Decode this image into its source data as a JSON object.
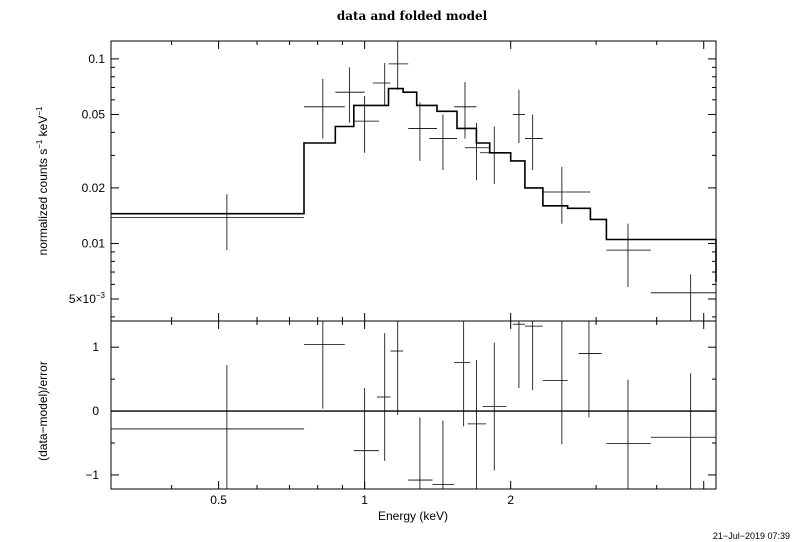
{
  "chart_data": [
    {
      "type": "scatter",
      "title": "data and folded model",
      "xlabel": "Energy (keV)",
      "ylabel_main": "normalized counts s",
      "ylabel_sup1": "−1",
      "ylabel_mid": " keV",
      "ylabel_sup2": "−1",
      "xscale": "log",
      "yscale": "log",
      "xlim": [
        0.3,
        5.3
      ],
      "ylim": [
        0.0038,
        0.125
      ],
      "ytick_labels": [
        {
          "value": 0.1,
          "label": "0.1"
        },
        {
          "value": 0.05,
          "label": "0.05"
        },
        {
          "value": 0.02,
          "label": "0.02"
        },
        {
          "value": 0.01,
          "label": "0.01"
        },
        {
          "value": 0.005,
          "label": "5×10",
          "sup": "−3"
        }
      ],
      "series": [
        {
          "points": [
            {
              "x": 0.52,
              "xlo": 0.3,
              "xhi": 0.75,
              "y": 0.0138,
              "ylo": 0.0092,
              "yhi": 0.0185
            },
            {
              "x": 0.82,
              "xlo": 0.75,
              "xhi": 0.91,
              "y": 0.055,
              "ylo": 0.037,
              "yhi": 0.078
            },
            {
              "x": 0.93,
              "xlo": 0.87,
              "xhi": 1.0,
              "y": 0.066,
              "ylo": 0.045,
              "yhi": 0.09
            },
            {
              "x": 1.0,
              "xlo": 0.95,
              "xhi": 1.07,
              "y": 0.046,
              "ylo": 0.031,
              "yhi": 0.063
            },
            {
              "x": 1.1,
              "xlo": 1.04,
              "xhi": 1.13,
              "y": 0.074,
              "ylo": 0.056,
              "yhi": 0.095
            },
            {
              "x": 1.17,
              "xlo": 1.12,
              "xhi": 1.23,
              "y": 0.094,
              "ylo": 0.068,
              "yhi": 0.125
            },
            {
              "x": 1.3,
              "xlo": 1.23,
              "xhi": 1.41,
              "y": 0.042,
              "ylo": 0.028,
              "yhi": 0.058
            },
            {
              "x": 1.45,
              "xlo": 1.36,
              "xhi": 1.55,
              "y": 0.037,
              "ylo": 0.025,
              "yhi": 0.05
            },
            {
              "x": 1.61,
              "xlo": 1.53,
              "xhi": 1.7,
              "y": 0.055,
              "ylo": 0.037,
              "yhi": 0.075
            },
            {
              "x": 1.7,
              "xlo": 1.61,
              "xhi": 1.81,
              "y": 0.033,
              "ylo": 0.022,
              "yhi": 0.045
            },
            {
              "x": 1.85,
              "xlo": 1.73,
              "xhi": 1.99,
              "y": 0.031,
              "ylo": 0.021,
              "yhi": 0.043
            },
            {
              "x": 2.08,
              "xlo": 2.02,
              "xhi": 2.14,
              "y": 0.05,
              "ylo": 0.035,
              "yhi": 0.068
            },
            {
              "x": 2.22,
              "xlo": 2.14,
              "xhi": 2.33,
              "y": 0.037,
              "ylo": 0.025,
              "yhi": 0.05
            },
            {
              "x": 2.55,
              "xlo": 2.33,
              "xhi": 2.92,
              "y": 0.019,
              "ylo": 0.0128,
              "yhi": 0.026
            },
            {
              "x": 3.49,
              "xlo": 3.15,
              "xhi": 3.89,
              "y": 0.0092,
              "ylo": 0.0058,
              "yhi": 0.0128
            },
            {
              "x": 4.7,
              "xlo": 3.89,
              "xhi": 5.3,
              "y": 0.0054,
              "ylo": 0.0038,
              "yhi": 0.0068
            }
          ]
        },
        {
          "type": "step",
          "edges": [
            0.3,
            0.75,
            0.87,
            0.95,
            1.07,
            1.12,
            1.2,
            1.28,
            1.41,
            1.55,
            1.7,
            1.81,
            2.0,
            2.14,
            2.33,
            2.62,
            2.92,
            3.15,
            3.89,
            5.3
          ],
          "values": [
            0.0145,
            0.035,
            0.043,
            0.056,
            0.056,
            0.069,
            0.066,
            0.056,
            0.052,
            0.042,
            0.035,
            0.031,
            0.028,
            0.02,
            0.016,
            0.0155,
            0.0135,
            0.0105,
            0.0105,
            0.0062
          ]
        }
      ]
    },
    {
      "type": "scatter",
      "xlabel": "Energy (keV)",
      "ylabel": "(data−model)/error",
      "xscale": "log",
      "xlim": [
        0.3,
        5.3
      ],
      "ylim": [
        -1.22,
        1.41
      ],
      "xtick_labels": [
        {
          "value": 0.5,
          "label": "0.5"
        },
        {
          "value": 1,
          "label": "1"
        },
        {
          "value": 2,
          "label": "2"
        }
      ],
      "ytick_labels": [
        {
          "value": 1,
          "label": "1"
        },
        {
          "value": 0,
          "label": "0"
        },
        {
          "value": -1,
          "label": "−1"
        }
      ],
      "zero_line": 0,
      "series": [
        {
          "points": [
            {
              "x": 0.52,
              "xlo": 0.3,
              "xhi": 0.75,
              "y": -0.28,
              "ylo": -1.22,
              "yhi": 0.72
            },
            {
              "x": 0.82,
              "xlo": 0.75,
              "xhi": 0.91,
              "y": 1.04,
              "ylo": 0.04,
              "yhi": 1.41
            },
            {
              "x": 1.0,
              "xlo": 0.95,
              "xhi": 1.07,
              "y": -0.62,
              "ylo": -1.22,
              "yhi": 0.36
            },
            {
              "x": 1.1,
              "xlo": 1.06,
              "xhi": 1.13,
              "y": 0.22,
              "ylo": -0.78,
              "yhi": 1.22
            },
            {
              "x": 1.17,
              "xlo": 1.13,
              "xhi": 1.2,
              "y": 0.94,
              "ylo": -0.06,
              "yhi": 1.41
            },
            {
              "x": 1.3,
              "xlo": 1.23,
              "xhi": 1.38,
              "y": -1.08,
              "ylo": -1.22,
              "yhi": -0.1
            },
            {
              "x": 1.45,
              "xlo": 1.38,
              "xhi": 1.53,
              "y": -1.15,
              "ylo": -1.22,
              "yhi": -0.15
            },
            {
              "x": 1.6,
              "xlo": 1.53,
              "xhi": 1.65,
              "y": 0.76,
              "ylo": -0.24,
              "yhi": 1.41
            },
            {
              "x": 1.7,
              "xlo": 1.63,
              "xhi": 1.78,
              "y": -0.2,
              "ylo": -1.22,
              "yhi": 0.8
            },
            {
              "x": 1.85,
              "xlo": 1.75,
              "xhi": 1.96,
              "y": 0.07,
              "ylo": -0.93,
              "yhi": 1.07
            },
            {
              "x": 2.08,
              "xlo": 2.02,
              "xhi": 2.14,
              "y": 1.36,
              "ylo": 0.36,
              "yhi": 1.41
            },
            {
              "x": 2.22,
              "xlo": 2.14,
              "xhi": 2.33,
              "y": 1.33,
              "ylo": 0.33,
              "yhi": 1.41
            },
            {
              "x": 2.55,
              "xlo": 2.33,
              "xhi": 2.62,
              "y": 0.48,
              "ylo": -0.52,
              "yhi": 1.41
            },
            {
              "x": 2.9,
              "xlo": 2.76,
              "xhi": 3.08,
              "y": 0.9,
              "ylo": -0.1,
              "yhi": 1.41
            },
            {
              "x": 3.49,
              "xlo": 3.15,
              "xhi": 3.89,
              "y": -0.51,
              "ylo": -1.22,
              "yhi": 0.49
            },
            {
              "x": 4.7,
              "xlo": 3.89,
              "xhi": 5.3,
              "y": -0.41,
              "ylo": -1.22,
              "yhi": 0.59
            }
          ]
        }
      ]
    }
  ],
  "timestamp": "21−Jul−2019 07:39"
}
